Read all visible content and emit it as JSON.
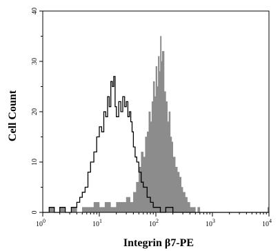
{
  "chart_data": {
    "type": "area",
    "title": "",
    "xlabel": "Integrin β7-PE",
    "ylabel": "Cell Count",
    "xscale": "log",
    "xlim": [
      1,
      10000
    ],
    "ylim": [
      0,
      40
    ],
    "grid": false,
    "x_ticks": [
      {
        "value": 1,
        "base": "10",
        "exp": "0"
      },
      {
        "value": 10,
        "base": "10",
        "exp": "1"
      },
      {
        "value": 100,
        "base": "10",
        "exp": "2"
      },
      {
        "value": 1000,
        "base": "10",
        "exp": "3"
      },
      {
        "value": 10000,
        "base": "10",
        "exp": "4"
      }
    ],
    "y_ticks": [
      {
        "value": 0,
        "label": "0"
      },
      {
        "value": 10,
        "label": "10"
      },
      {
        "value": 20,
        "label": "20"
      },
      {
        "value": 30,
        "label": "30"
      },
      {
        "value": 40,
        "label": "40"
      }
    ],
    "series": [
      {
        "style": "filled",
        "color": "#8c8c8c",
        "x": [
          1.1,
          1.3,
          1.6,
          2.0,
          2.5,
          3.2,
          4.0,
          5.0,
          6.3,
          8.0,
          10,
          12.6,
          15.8,
          20,
          25,
          30,
          35,
          40,
          45,
          50,
          55,
          60,
          65,
          70,
          75,
          80,
          85,
          90,
          95,
          100,
          105,
          110,
          115,
          120,
          125,
          130,
          140,
          150,
          160,
          170,
          180,
          190,
          200,
          220,
          240,
          260,
          280,
          300,
          330,
          360,
          400,
          450,
          500,
          550,
          600,
          1000,
          3000,
          9500,
          10000
        ],
        "y": [
          0,
          1,
          0,
          1,
          0,
          1,
          0,
          1,
          1,
          2,
          1,
          2,
          1,
          2,
          2,
          3,
          2,
          4,
          6,
          9,
          12,
          11,
          15,
          16,
          20,
          18,
          22,
          26,
          23,
          29,
          25,
          31,
          28,
          35,
          30,
          32,
          24,
          22,
          18,
          20,
          15,
          14,
          11,
          9,
          8,
          7,
          5,
          4,
          3,
          2,
          1,
          1,
          0,
          1,
          0,
          0,
          0,
          1,
          0
        ]
      },
      {
        "style": "line",
        "color": "#000000",
        "x": [
          1.0,
          1.3,
          1.6,
          2.0,
          2.5,
          3.2,
          4.0,
          4.5,
          5.0,
          5.6,
          6.3,
          7.0,
          8.0,
          9.0,
          10,
          11,
          12,
          13,
          14,
          15,
          16,
          17,
          18,
          19,
          20,
          22,
          24,
          26,
          28,
          30,
          32,
          34,
          36,
          38,
          40,
          43,
          46,
          50,
          55,
          60,
          70,
          80,
          90,
          100,
          120,
          150,
          200,
          10000
        ],
        "y": [
          0,
          1,
          0,
          1,
          0,
          1,
          2,
          3,
          4,
          5,
          8,
          10,
          12,
          15,
          17,
          16,
          20,
          19,
          23,
          21,
          26,
          25,
          27,
          21,
          19,
          22,
          20,
          23,
          21,
          22,
          19,
          20,
          18,
          16,
          13,
          11,
          10,
          8,
          6,
          5,
          3,
          2,
          1,
          1,
          0,
          1,
          0,
          0
        ]
      }
    ]
  }
}
